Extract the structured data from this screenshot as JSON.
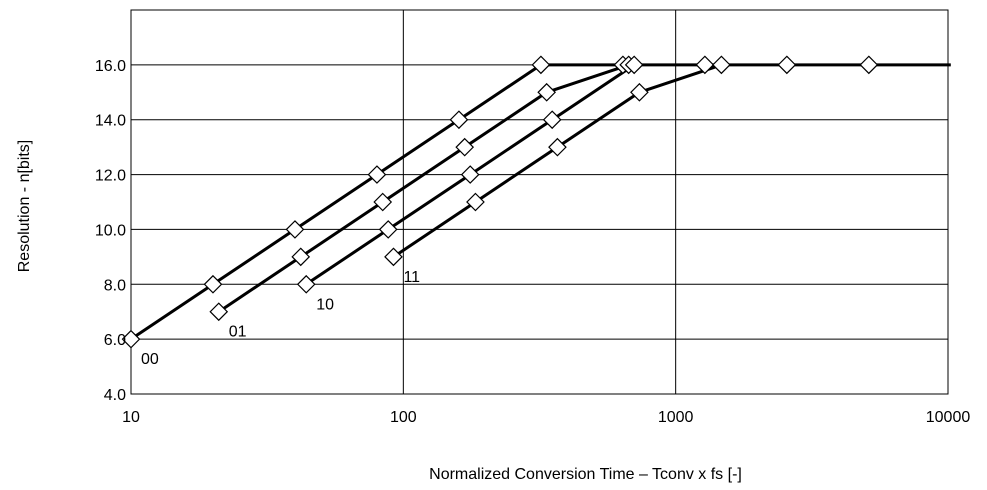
{
  "chart_data": {
    "type": "line",
    "title": "",
    "xlabel": "Normalized Conversion Time – Tconv x fs [-]",
    "ylabel": "Resolution - n[bits]",
    "xscale": "log",
    "xlim": [
      10,
      10000
    ],
    "ylim": [
      4.0,
      18.0
    ],
    "x_ticks": [
      10,
      100,
      1000,
      10000
    ],
    "x_tick_labels": [
      "10",
      "100",
      "1000",
      "10000"
    ],
    "y_ticks": [
      4,
      6,
      8,
      10,
      12,
      14,
      16
    ],
    "y_tick_labels": [
      "4.0",
      "6.0",
      "8.0",
      "10.0",
      "12.0",
      "14.0",
      "16.0"
    ],
    "grid": true,
    "marker": "diamond",
    "series": [
      {
        "name": "00",
        "x": [
          10,
          20,
          40,
          80,
          160,
          320,
          640,
          1280,
          2560,
          5120,
          10240
        ],
        "y": [
          6,
          8,
          10,
          12,
          14,
          16,
          16,
          16,
          16,
          16,
          16
        ]
      },
      {
        "name": "01",
        "x": [
          21,
          42,
          84,
          168,
          336,
          672
        ],
        "y": [
          7,
          9,
          11,
          13,
          15,
          16
        ]
      },
      {
        "name": "10",
        "x": [
          44,
          88,
          176,
          352,
          704
        ],
        "y": [
          8,
          10,
          12,
          14,
          16
        ]
      },
      {
        "name": "11",
        "x": [
          92,
          184,
          368,
          736,
          1472
        ],
        "y": [
          9,
          11,
          13,
          15,
          16
        ]
      }
    ]
  }
}
